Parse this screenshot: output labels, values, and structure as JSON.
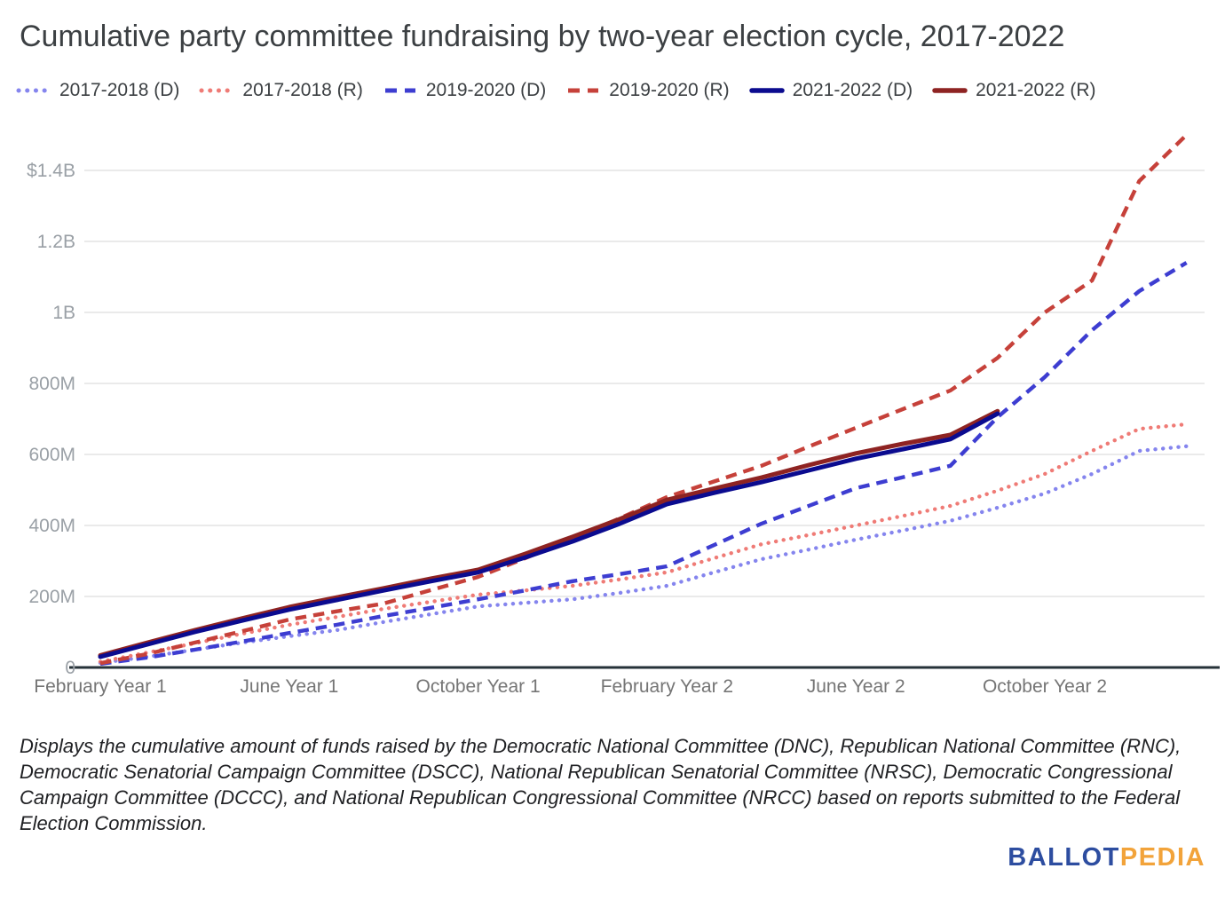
{
  "title": "Cumulative party committee fundraising by two-year election cycle, 2017-2022",
  "footer": {
    "note": "Displays the cumulative amount of funds raised by the Democratic National Committee (DNC), Republican National Committee (RNC), Democratic Senatorial Campaign Committee (DSCC), National Republican Senatorial Committee (NRSC), Democratic Congressional Campaign Committee (DCCC), and National Republican Congressional Committee (NRCC) based on reports submitted to the Federal Election Commission."
  },
  "logo": {
    "part1": "BALLOT",
    "part2": "PEDIA",
    "part1_color": "#2d4da0",
    "part2_color": "#f2a33a"
  },
  "colors": {
    "background": "#ffffff",
    "title_text": "#3c4043",
    "axis_line": "#263238",
    "gridline": "#e4e4e4",
    "y_tick_text": "#9aa0a6",
    "x_tick_text": "#757575"
  },
  "chart_data": {
    "type": "line",
    "title": "Cumulative party committee fundraising by two-year election cycle, 2017-2022",
    "xlabel": "",
    "ylabel": "",
    "values_unit": "millions of USD",
    "ylim": [
      0,
      1550
    ],
    "grid": "horizontal",
    "legend_position": "top",
    "y_ticks": [
      {
        "value": 1400,
        "label": "$1.4B"
      },
      {
        "value": 1200,
        "label": "1.2B"
      },
      {
        "value": 1000,
        "label": "1B"
      },
      {
        "value": 800,
        "label": "800M"
      },
      {
        "value": 600,
        "label": "600M"
      },
      {
        "value": 400,
        "label": "400M"
      },
      {
        "value": 200,
        "label": "200M"
      },
      {
        "value": 0,
        "label": "0"
      }
    ],
    "x_axis": {
      "unit": "months elapsed since February of Year 1 of each two-year cycle",
      "range": [
        0,
        23.6
      ],
      "ticks": [
        {
          "pos": 0,
          "label": "February Year 1"
        },
        {
          "pos": 4,
          "label": "June Year 1"
        },
        {
          "pos": 8,
          "label": "October Year 1"
        },
        {
          "pos": 12,
          "label": "February Year 2"
        },
        {
          "pos": 16,
          "label": "June Year 2"
        },
        {
          "pos": 20,
          "label": "October Year 2"
        }
      ]
    },
    "series": [
      {
        "name": "2017-2018 (D)",
        "style": "dotted",
        "color": "#8585ee",
        "x": [
          0,
          1,
          2,
          3,
          4,
          5,
          6,
          7,
          8,
          9,
          10,
          11,
          12,
          13,
          14,
          15,
          16,
          17,
          18,
          19,
          20,
          21,
          22,
          23
        ],
        "values": [
          13,
          30,
          50,
          70,
          88,
          105,
          128,
          150,
          172,
          182,
          192,
          210,
          230,
          268,
          305,
          332,
          360,
          386,
          413,
          450,
          490,
          545,
          610,
          623
        ]
      },
      {
        "name": "2017-2018 (R)",
        "style": "dotted",
        "color": "#ef7b76",
        "x": [
          0,
          1,
          2,
          3,
          4,
          5,
          6,
          7,
          8,
          9,
          10,
          11,
          12,
          13,
          14,
          15,
          16,
          17,
          18,
          19,
          20,
          21,
          22,
          23
        ],
        "values": [
          16,
          42,
          68,
          95,
          120,
          142,
          165,
          185,
          205,
          217,
          230,
          248,
          268,
          308,
          347,
          373,
          400,
          427,
          455,
          498,
          545,
          610,
          672,
          685
        ]
      },
      {
        "name": "2019-2020 (D)",
        "style": "dashed",
        "color": "#3d3dd1",
        "x": [
          0,
          1,
          2,
          3,
          4,
          5,
          6,
          7,
          8,
          9,
          10,
          11,
          12,
          13,
          14,
          15,
          16,
          17,
          18,
          19,
          20,
          21,
          22,
          23
        ],
        "values": [
          10,
          28,
          50,
          73,
          97,
          120,
          145,
          168,
          192,
          217,
          243,
          263,
          285,
          345,
          405,
          455,
          505,
          536,
          568,
          705,
          818,
          950,
          1060,
          1140
        ]
      },
      {
        "name": "2019-2020 (R)",
        "style": "dashed",
        "color": "#c6413a",
        "x": [
          0,
          1,
          2,
          3,
          4,
          5,
          6,
          7,
          8,
          9,
          10,
          11,
          12,
          13,
          14,
          15,
          16,
          17,
          18,
          19,
          20,
          21,
          22,
          23
        ],
        "values": [
          12,
          38,
          70,
          102,
          135,
          158,
          180,
          218,
          255,
          308,
          363,
          420,
          480,
          524,
          568,
          622,
          675,
          728,
          780,
          872,
          1000,
          1090,
          1370,
          1500
        ]
      },
      {
        "name": "2021-2022 (D)",
        "style": "solid",
        "color": "#0b0b8f",
        "x": [
          0,
          1,
          2,
          3,
          4,
          5,
          6,
          7,
          8,
          9,
          10,
          11,
          12,
          13,
          14,
          15,
          16,
          17,
          18,
          19
        ],
        "values": [
          30,
          65,
          100,
          132,
          163,
          190,
          217,
          243,
          268,
          310,
          355,
          405,
          460,
          492,
          522,
          555,
          588,
          615,
          643,
          715
        ]
      },
      {
        "name": "2021-2022 (R)",
        "style": "solid",
        "color": "#8e2322",
        "x": [
          0,
          1,
          2,
          3,
          4,
          5,
          6,
          7,
          8,
          9,
          10,
          11,
          12,
          13,
          14,
          15,
          16,
          17,
          18,
          19
        ],
        "values": [
          34,
          70,
          105,
          138,
          170,
          197,
          223,
          250,
          275,
          320,
          368,
          418,
          472,
          504,
          535,
          570,
          603,
          630,
          655,
          722
        ]
      }
    ]
  }
}
